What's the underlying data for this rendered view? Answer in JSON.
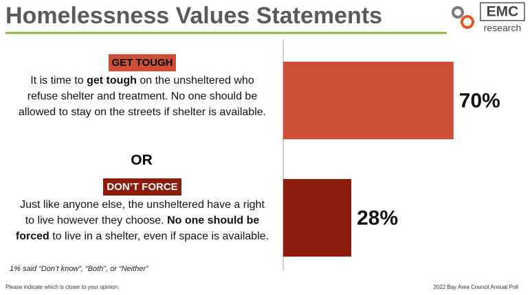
{
  "title": "Homelessness Values Statements",
  "logo": {
    "name": "EMC",
    "subtitle": "research"
  },
  "footer": {
    "note": "Please indicate which is closer to your opinion.",
    "source": "2022 Bay Area Council Annual Poll"
  },
  "chart_data": {
    "type": "bar",
    "orientation": "horizontal",
    "categories": [
      "GET TOUGH",
      "DON’T FORCE"
    ],
    "statements": [
      [
        {
          "text": "It is time to ",
          "bold": false
        },
        {
          "text": "get tough",
          "bold": true
        },
        {
          "text": " on the unsheltered who refuse shelter and treatment. No one should be allowed to stay on the streets if shelter is available.",
          "bold": false
        }
      ],
      [
        {
          "text": "Just like anyone else, the unsheltered have a right to live however they choose. ",
          "bold": false
        },
        {
          "text": "No one should be forced",
          "bold": true
        },
        {
          "text": " to live in a shelter, even if space is available.",
          "bold": false
        }
      ]
    ],
    "separator": "OR",
    "values": [
      70,
      28
    ],
    "value_labels": [
      "70%",
      "28%"
    ],
    "colors": [
      "#cc5038",
      "#8c1c0b"
    ],
    "label_text_colors": [
      "#000000",
      "#ffffff"
    ],
    "xlim": [
      0,
      100
    ],
    "annotation": "1% said “Don’t know”, “Both”, or “Neither”"
  }
}
